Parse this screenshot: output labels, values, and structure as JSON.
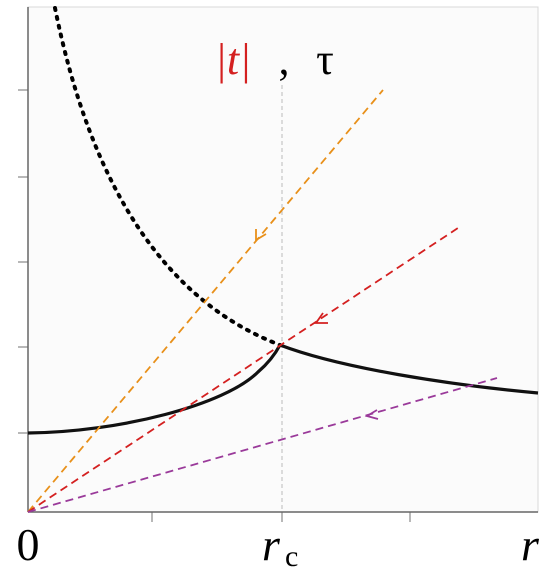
{
  "title": {
    "t": "|t|",
    "separator": ",",
    "tau": "τ"
  },
  "x_labels": {
    "origin": "0",
    "rc": "r",
    "rc_subscript": "c",
    "r": "r"
  }
}
